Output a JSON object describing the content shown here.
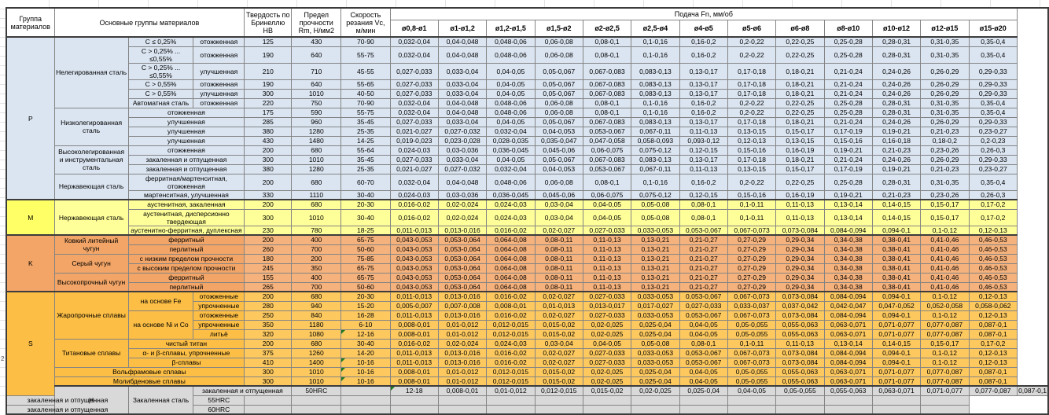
{
  "page": {
    "stray_row_number": "2"
  },
  "table": {
    "headers": {
      "group": "Группа материалов",
      "main": "Основные группы материалов",
      "hardness": "Твердость по Бринеллю HB",
      "strength": "Предел прочности Rm, Н/мм2",
      "speed": "Скорость резания Vc, м/мин",
      "feed": "Подача Fn, мм/об"
    },
    "diameters": [
      "ø0,8-ø1",
      "ø1-ø1,2",
      "ø1,2-ø1,5",
      "ø1,5-ø2",
      "ø2-ø2,5",
      "ø2,5-ø4",
      "ø4-ø5",
      "ø5-ø6",
      "ø6-ø8",
      "ø8-ø10",
      "ø10-ø12",
      "ø12-ø15",
      "ø15-ø20"
    ],
    "feed_sets": {
      "A": [
        "0,032-0,04",
        "0,04-0,048",
        "0,048-0,06",
        "0,06-0,08",
        "0,08-0,1",
        "0,1-0,16",
        "0,16-0,2",
        "0,2-0,22",
        "0,22-0,25",
        "0,25-0,28",
        "0,28-0,31",
        "0,31-0,35",
        "0,35-0,4"
      ],
      "B": [
        "0,027-0,033",
        "0,033-0,04",
        "0,04-0,05",
        "0,05-0,067",
        "0,067-0,083",
        "0,083-0,13",
        "0,13-0,17",
        "0,17-0,18",
        "0,18-0,21",
        "0,21-0,24",
        "0,24-0,26",
        "0,26-0,29",
        "0,29-0,33"
      ],
      "C": [
        "0,021-0,027",
        "0,027-0,032",
        "0,032-0,04",
        "0,04-0,053",
        "0,053-0,067",
        "0,067-0,11",
        "0,11-0,13",
        "0,13-0,15",
        "0,15-0,17",
        "0,17-0,19",
        "0,19-0,21",
        "0,21-0,23",
        "0,23-0,27"
      ],
      "D": [
        "0,019-0,023",
        "0,023-0,028",
        "0,028-0,035",
        "0,035-0,047",
        "0,047-0,058",
        "0,058-0,093",
        "0,093-0,12",
        "0,12-0,13",
        "0,13-0,15",
        "0,15-0,16",
        "0,16-0,18",
        "0,18-0,2",
        "0,2-0,23"
      ],
      "E": [
        "0,024-0,03",
        "0,03-0,036",
        "0,036-0,045",
        "0,045-0,06",
        "0,06-0,075",
        "0,075-0,12",
        "0,12-0,15",
        "0,15-0,16",
        "0,16-0,19",
        "0,19-0,21",
        "0,21-0,23",
        "0,23-0,26",
        "0,26-0,3"
      ],
      "F": [
        "0,016-0,02",
        "0,02-0,024",
        "0,024-0,03",
        "0,03-0,04",
        "0,04-0,05",
        "0,05-0,08",
        "0,08-0,1",
        "0,1-0,11",
        "0,11-0,13",
        "0,13-0,14",
        "0,14-0,15",
        "0,15-0,17",
        "0,17-0,2"
      ],
      "G": [
        "0,011-0,013",
        "0,013-0,016",
        "0,016-0,02",
        "0,02-0,027",
        "0,027-0,033",
        "0,033-0,053",
        "0,053-0,067",
        "0,067-0,073",
        "0,073-0,084",
        "0,084-0,094",
        "0,094-0,1",
        "0,1-0,12",
        "0,12-0,13"
      ],
      "H": [
        "0,043-0,053",
        "0,053-0,064",
        "0,064-0,08",
        "0,08-0,11",
        "0,11-0,13",
        "0,13-0,21",
        "0,21-0,27",
        "0,27-0,29",
        "0,29-0,34",
        "0,34-0,38",
        "0,38-0,41",
        "0,41-0,46",
        "0,46-0,53"
      ],
      "I": [
        "0,005-0,007",
        "0,007-0,008",
        "0,008-0,01",
        "0,01-0,013",
        "0,013-0,017",
        "0,017-0,027",
        "0,027-0,033",
        "0,033-0,037",
        "0,037-0,042",
        "0,042-0,047",
        "0,047-0,052",
        "0,052-0,058",
        "0,058-0,062"
      ],
      "J": [
        "0,008-0,01",
        "0,01-0,012",
        "0,012-0,015",
        "0,015-0,02",
        "0,02-0,025",
        "0,025-0,04",
        "0,04-0,05",
        "0,05-0,055",
        "0,055-0,063",
        "0,063-0,071",
        "0,071-0,077",
        "0,077-0,087",
        "0,087-0,1"
      ],
      "EMPTY": [
        "",
        "",
        "",
        "",
        "",
        "",
        "",
        "",
        "",
        "",
        "",
        "",
        ""
      ]
    },
    "rows": [
      {
        "band": "P",
        "start": true,
        "left": [
          {
            "t": "P",
            "k": "grp",
            "r": 15
          },
          {
            "t": "Нелегированная сталь",
            "r": 6
          },
          {
            "t": "C ≤ 0,25%"
          },
          {
            "t": "отожженная"
          }
        ],
        "hb": "125",
        "rm": "430",
        "vc": "70-90",
        "feed": "A"
      },
      {
        "band": "P",
        "left": [
          {
            "t": "C > 0,25% ... ≤0,55%"
          },
          {
            "t": "отожженная"
          }
        ],
        "hb": "190",
        "rm": "640",
        "vc": "55-75",
        "feed": "A"
      },
      {
        "band": "P",
        "left": [
          {
            "t": "C > 0,25% ... ≤0,55%"
          },
          {
            "t": "улучшенная"
          }
        ],
        "hb": "210",
        "rm": "710",
        "vc": "45-55",
        "feed": "B"
      },
      {
        "band": "P",
        "left": [
          {
            "t": "C > 0,55%"
          },
          {
            "t": "отожженная"
          }
        ],
        "hb": "190",
        "rm": "640",
        "vc": "55-65",
        "feed": "B"
      },
      {
        "band": "P",
        "left": [
          {
            "t": "C > 0,55%"
          },
          {
            "t": "улучшенная"
          }
        ],
        "hb": "300",
        "rm": "1010",
        "vc": "40-50",
        "feed": "B"
      },
      {
        "band": "P",
        "left": [
          {
            "t": "Автоматная сталь"
          },
          {
            "t": "отожженная"
          }
        ],
        "hb": "220",
        "rm": "750",
        "vc": "70-90",
        "feed": "A"
      },
      {
        "band": "P",
        "left": [
          {
            "t": "Низколегированная сталь",
            "r": 4
          },
          {
            "t": "отожженная",
            "c": 2
          }
        ],
        "hb": "175",
        "rm": "590",
        "vc": "55-75",
        "feed": "A"
      },
      {
        "band": "P",
        "left": [
          {
            "t": "улучшенная",
            "c": 2
          }
        ],
        "hb": "285",
        "rm": "960",
        "vc": "35-45",
        "feed": "B"
      },
      {
        "band": "P",
        "left": [
          {
            "t": "улучшенная",
            "c": 2
          }
        ],
        "hb": "380",
        "rm": "1280",
        "vc": "25-35",
        "feed": "C"
      },
      {
        "band": "P",
        "left": [
          {
            "t": "улучшенная",
            "c": 2
          }
        ],
        "hb": "430",
        "rm": "1480",
        "vc": "14-25",
        "feed": "D"
      },
      {
        "band": "P",
        "left": [
          {
            "t": "Высоколегированная и инструментальная сталь",
            "r": 3
          },
          {
            "t": "отожженная",
            "c": 2
          }
        ],
        "hb": "200",
        "rm": "680",
        "vc": "55-64",
        "feed": "E"
      },
      {
        "band": "P",
        "left": [
          {
            "t": "закаленная и отпущенная",
            "c": 2
          }
        ],
        "hb": "300",
        "rm": "1010",
        "vc": "35-45",
        "feed": "B"
      },
      {
        "band": "P",
        "left": [
          {
            "t": "закаленная и отпущенная",
            "c": 2
          }
        ],
        "hb": "380",
        "rm": "1280",
        "vc": "25-35",
        "feed": "C"
      },
      {
        "band": "P",
        "left": [
          {
            "t": "Нержавеющая сталь",
            "r": 2
          },
          {
            "t": "ферритная/мартенситная, отожженная",
            "c": 2
          }
        ],
        "hb": "200",
        "rm": "680",
        "vc": "60-70",
        "feed": "A"
      },
      {
        "band": "P",
        "left": [
          {
            "t": "мартенситная, улучшенная",
            "c": 2
          }
        ],
        "hb": "330",
        "rm": "1110",
        "vc": "30-40",
        "feed": "E"
      },
      {
        "band": "M",
        "start": true,
        "left": [
          {
            "t": "M",
            "k": "grp",
            "r": 3
          },
          {
            "t": "Нержавеющая сталь",
            "r": 3
          },
          {
            "t": "аустенитная, закаленная",
            "c": 2
          }
        ],
        "hb": "200",
        "rm": "680",
        "vc": "20-30",
        "feed": "F"
      },
      {
        "band": "M",
        "left": [
          {
            "t": "аустенитная, дисперсионно твердеющая",
            "c": 2
          }
        ],
        "hb": "300",
        "rm": "1010",
        "vc": "30-40",
        "feed": "F"
      },
      {
        "band": "M",
        "left": [
          {
            "t": "аустенитно-ферритная, дуплексная",
            "c": 2
          }
        ],
        "hb": "230",
        "rm": "780",
        "vc": "18-25",
        "feed": "G"
      },
      {
        "band": "K",
        "start": true,
        "left": [
          {
            "t": "K",
            "k": "grp",
            "r": 6
          },
          {
            "t": "Ковкий литейный чугун",
            "r": 2
          },
          {
            "t": "ферритный",
            "c": 2
          }
        ],
        "hb": "200",
        "rm": "400",
        "vc": "65-75",
        "feed": "H"
      },
      {
        "band": "K",
        "left": [
          {
            "t": "перлитный",
            "c": 2
          }
        ],
        "hb": "260",
        "rm": "700",
        "vc": "50-60",
        "feed": "H"
      },
      {
        "band": "K",
        "left": [
          {
            "t": "Серый чугун",
            "r": 2
          },
          {
            "t": "с низким пределом прочности",
            "c": 2
          }
        ],
        "hb": "180",
        "rm": "200",
        "vc": "75-85",
        "feed": "H"
      },
      {
        "band": "K",
        "left": [
          {
            "t": "с высоким пределом прочности",
            "c": 2
          }
        ],
        "hb": "245",
        "rm": "350",
        "vc": "65-75",
        "feed": "H"
      },
      {
        "band": "K",
        "left": [
          {
            "t": "Высокопрочный чугун",
            "r": 2
          },
          {
            "t": "ферритный",
            "c": 2
          }
        ],
        "hb": "155",
        "rm": "400",
        "vc": "65-75",
        "feed": "H"
      },
      {
        "band": "K",
        "left": [
          {
            "t": "перлитный",
            "c": 2
          }
        ],
        "hb": "265",
        "rm": "700",
        "vc": "50-60",
        "feed": "H"
      },
      {
        "band": "S",
        "start": true,
        "left": [
          {
            "t": "S",
            "k": "grp",
            "r": 11
          },
          {
            "t": "Жаропрочные сплавы",
            "r": 5
          },
          {
            "t": "на основе Fe",
            "r": 2
          },
          {
            "t": "отожженные"
          }
        ],
        "hb": "200",
        "rm": "680",
        "vc": "20-30",
        "feed": "G"
      },
      {
        "band": "S",
        "left": [
          {
            "t": "упрочненные"
          }
        ],
        "hb": "280",
        "rm": "940",
        "vc": "15-20",
        "feed": "I"
      },
      {
        "band": "S",
        "left": [
          {
            "t": "на основе Ni и Co",
            "r": 3
          },
          {
            "t": "отожженные"
          }
        ],
        "hb": "250",
        "rm": "840",
        "vc": "16-28",
        "feed": "G"
      },
      {
        "band": "S",
        "left": [
          {
            "t": "упрочненные"
          }
        ],
        "hb": "350",
        "rm": "1180",
        "vc": "6-10",
        "feed": "J"
      },
      {
        "band": "S",
        "left": [
          {
            "t": "литьё"
          }
        ],
        "hb": "320",
        "rm": "1080",
        "vc": "12-16",
        "flag": true,
        "feed": "J"
      },
      {
        "band": "S",
        "left": [
          {
            "t": "Титановые сплавы",
            "r": 3
          },
          {
            "t": "чистый титан",
            "c": 2
          }
        ],
        "hb": "200",
        "rm": "680",
        "vc": "30-40",
        "feed": "F"
      },
      {
        "band": "S",
        "left": [
          {
            "t": "α- и β-сплавы, упрочненные",
            "c": 2
          }
        ],
        "hb": "375",
        "rm": "1260",
        "vc": "14-20",
        "feed": "G"
      },
      {
        "band": "S",
        "left": [
          {
            "t": "β-сплавы",
            "c": 2
          }
        ],
        "hb": "410",
        "rm": "1400",
        "vc": "10-16",
        "flag": true,
        "feed": "G"
      },
      {
        "band": "S",
        "left": [
          {
            "t": "Вольфрамовые сплавы",
            "c": 3
          }
        ],
        "hb": "300",
        "rm": "1010",
        "vc": "10-16",
        "flag": true,
        "feed": "J"
      },
      {
        "band": "S",
        "left": [
          {
            "t": "Молибденовые сплавы",
            "c": 3
          }
        ],
        "hb": "300",
        "rm": "1010",
        "vc": "10-16",
        "flag": true,
        "feed": "J"
      },
      {
        "band": "H",
        "start": true,
        "left": [
          {
            "t": "H",
            "k": "grp",
            "r": 3
          },
          {
            "t": "Закаленная сталь",
            "r": 3
          },
          {
            "t": "закаленная и отпущенная",
            "c": 2
          }
        ],
        "hb": "50HRC",
        "rm": "",
        "vc": "12-18",
        "flag": true,
        "feed": "J"
      },
      {
        "band": "H",
        "left": [
          {
            "t": "закаленная и отпущенная",
            "c": 2
          }
        ],
        "hb": "55HRC",
        "rm": "",
        "vc": "",
        "feed": "EMPTY"
      },
      {
        "band": "H",
        "left": [
          {
            "t": "закаленная и отпущенная",
            "c": 2
          }
        ],
        "hb": "60HRC",
        "rm": "",
        "vc": "",
        "feed": "EMPTY"
      }
    ]
  }
}
